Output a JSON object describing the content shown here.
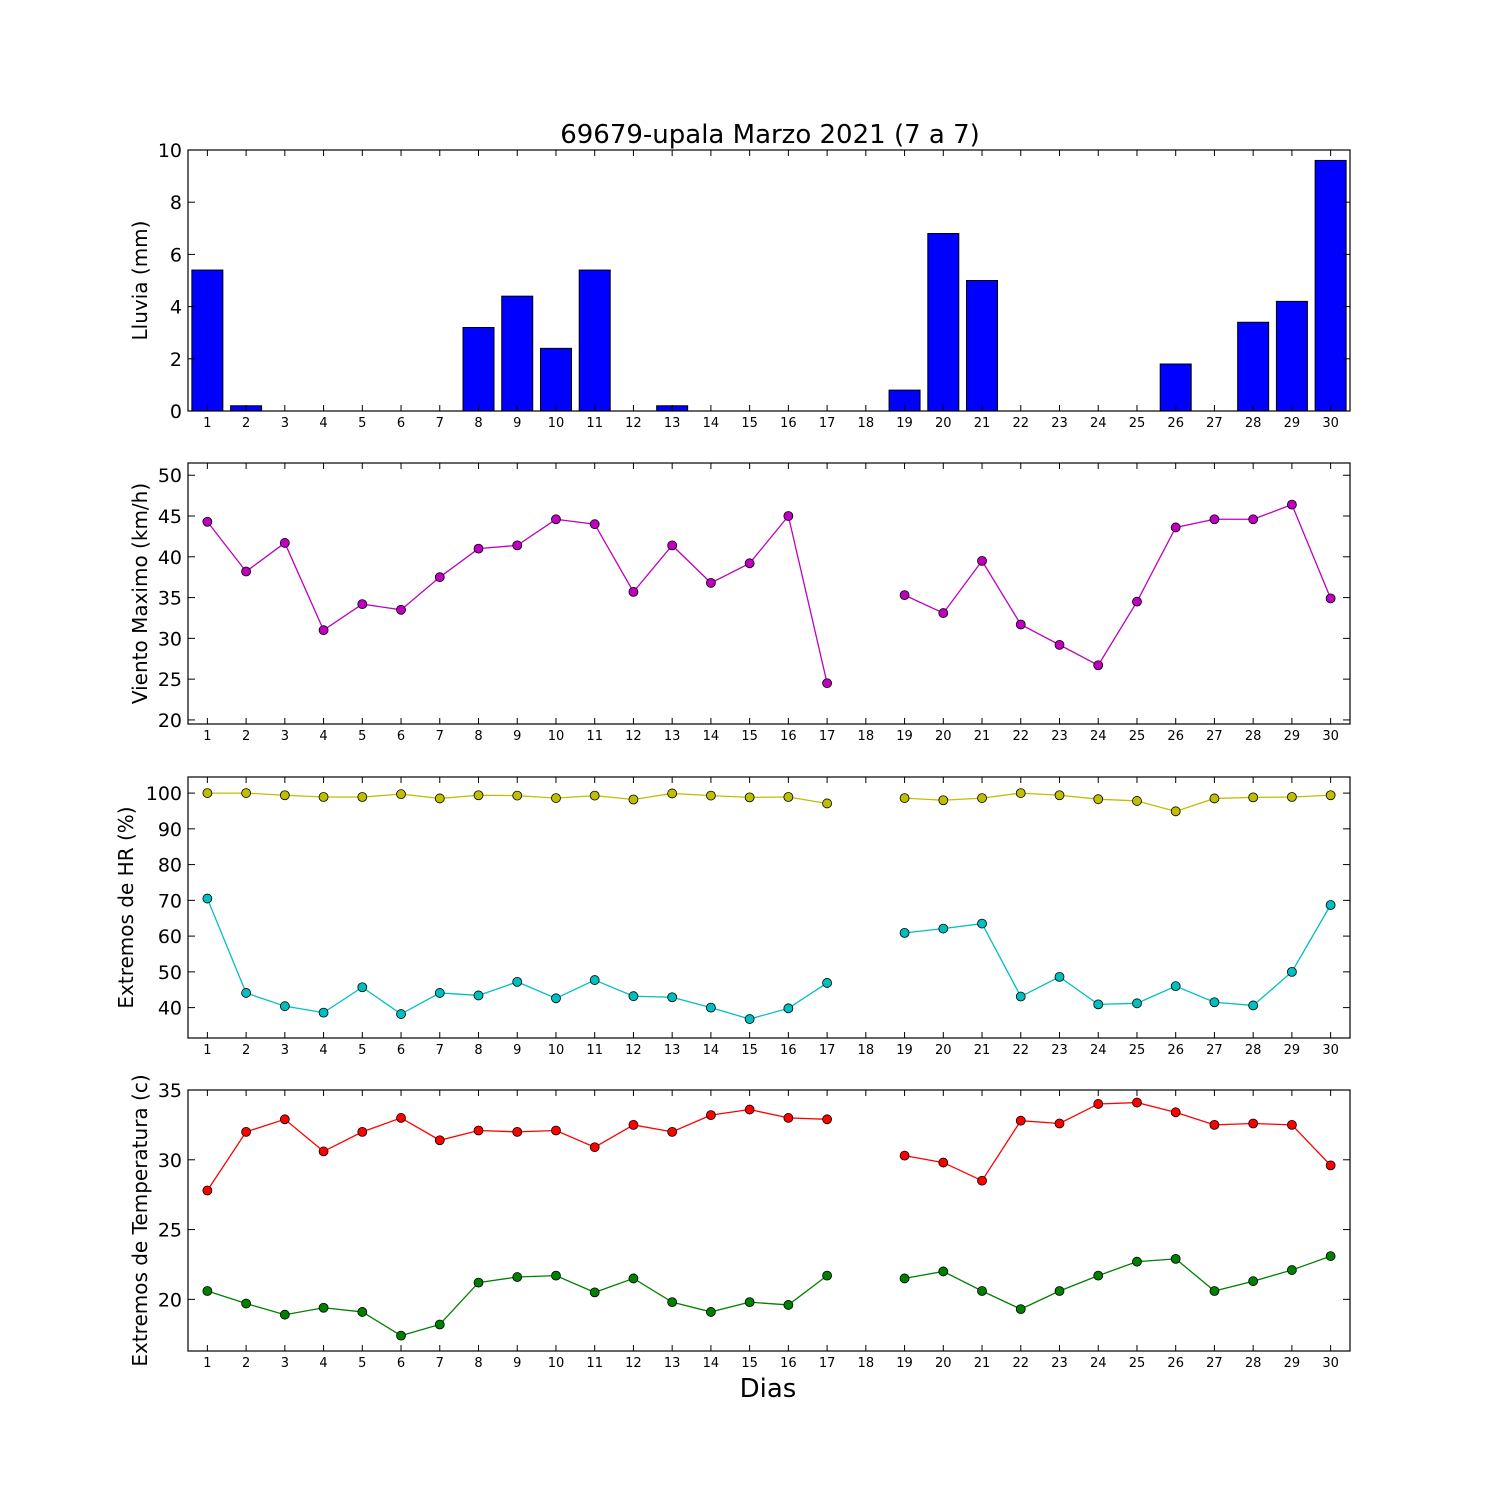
{
  "title": "69679-upala Marzo 2021  (7 a 7)",
  "xlabel": "Dias",
  "colors": {
    "lluvia": "#0000ff",
    "viento": "#bf00bf",
    "hr_max": "#bfbf00",
    "hr_min": "#00bfbf",
    "temp_max": "#ff0000",
    "temp_min": "#008000"
  },
  "chart_data": [
    {
      "type": "bar",
      "ylabel": "Lluvia (mm)",
      "ylim": [
        0,
        10
      ],
      "yticks": [
        0,
        2,
        4,
        6,
        8,
        10
      ],
      "categories": [
        "1",
        "2",
        "3",
        "4",
        "5",
        "6",
        "7",
        "8",
        "9",
        "10",
        "11",
        "12",
        "13",
        "14",
        "15",
        "16",
        "17",
        "18",
        "19",
        "20",
        "21",
        "22",
        "23",
        "24",
        "25",
        "26",
        "27",
        "28",
        "29",
        "30"
      ],
      "series": [
        {
          "values": [
            5.4,
            0.2,
            0,
            0,
            0,
            0,
            0,
            3.2,
            4.4,
            2.4,
            5.4,
            0,
            0.2,
            0,
            0,
            0,
            0,
            null,
            0.8,
            6.8,
            5.0,
            0,
            0,
            0,
            0,
            1.8,
            0,
            3.4,
            4.2,
            9.6
          ]
        }
      ]
    },
    {
      "type": "line",
      "ylabel": "Viento Maximo (km/h)",
      "ylim": [
        19.5,
        51.5
      ],
      "yticks": [
        20,
        25,
        30,
        35,
        40,
        45,
        50
      ],
      "categories": [
        "1",
        "2",
        "3",
        "4",
        "5",
        "6",
        "7",
        "8",
        "9",
        "10",
        "11",
        "12",
        "13",
        "14",
        "15",
        "16",
        "17",
        "18",
        "19",
        "20",
        "21",
        "22",
        "23",
        "24",
        "25",
        "26",
        "27",
        "28",
        "29",
        "30"
      ],
      "series": [
        {
          "values": [
            44.3,
            38.2,
            41.7,
            31.0,
            34.2,
            33.5,
            37.5,
            41.0,
            41.4,
            44.6,
            44.0,
            35.7,
            41.4,
            36.8,
            39.2,
            45.0,
            24.5,
            null,
            35.3,
            33.1,
            39.5,
            31.7,
            29.2,
            26.7,
            34.5,
            43.6,
            44.6,
            44.6,
            46.4,
            34.9
          ]
        }
      ]
    },
    {
      "type": "line",
      "ylabel": "Extremos de HR (%)",
      "ylim": [
        31.5,
        104.5
      ],
      "yticks": [
        40,
        50,
        60,
        70,
        80,
        90,
        100
      ],
      "categories": [
        "1",
        "2",
        "3",
        "4",
        "5",
        "6",
        "7",
        "8",
        "9",
        "10",
        "11",
        "12",
        "13",
        "14",
        "15",
        "16",
        "17",
        "18",
        "19",
        "20",
        "21",
        "22",
        "23",
        "24",
        "25",
        "26",
        "27",
        "28",
        "29",
        "30"
      ],
      "series": [
        {
          "values": [
            100,
            100,
            99.4,
            98.9,
            98.9,
            99.7,
            98.5,
            99.4,
            99.3,
            98.6,
            99.3,
            98.2,
            99.9,
            99.3,
            98.8,
            98.9,
            97.1,
            null,
            98.6,
            98.0,
            98.6,
            100,
            99.4,
            98.3,
            97.8,
            94.9,
            98.5,
            98.8,
            98.9,
            99.4
          ]
        },
        {
          "values": [
            70.5,
            44.1,
            40.4,
            38.6,
            45.7,
            38.2,
            44.1,
            43.4,
            47.2,
            42.6,
            47.7,
            43.2,
            42.9,
            40.0,
            36.8,
            39.8,
            46.9,
            null,
            60.9,
            62.1,
            63.5,
            43.1,
            48.6,
            40.9,
            41.2,
            46.0,
            41.5,
            40.6,
            50.0,
            68.7
          ]
        }
      ]
    },
    {
      "type": "line",
      "ylabel": "Extremos de Temperatura (c)",
      "ylim": [
        16.3,
        35
      ],
      "yticks": [
        20,
        25,
        30,
        35
      ],
      "categories": [
        "1",
        "2",
        "3",
        "4",
        "5",
        "6",
        "7",
        "8",
        "9",
        "10",
        "11",
        "12",
        "13",
        "14",
        "15",
        "16",
        "17",
        "18",
        "19",
        "20",
        "21",
        "22",
        "23",
        "24",
        "25",
        "26",
        "27",
        "28",
        "29",
        "30"
      ],
      "series": [
        {
          "values": [
            27.8,
            32.0,
            32.9,
            30.6,
            32.0,
            33.0,
            31.4,
            32.1,
            32.0,
            32.1,
            30.9,
            32.5,
            32.0,
            33.2,
            33.6,
            33.0,
            32.9,
            null,
            30.3,
            29.8,
            28.5,
            32.8,
            32.6,
            34.0,
            34.1,
            33.4,
            32.5,
            32.6,
            32.5,
            29.6
          ]
        },
        {
          "values": [
            20.6,
            19.7,
            18.9,
            19.4,
            19.1,
            17.4,
            18.2,
            21.2,
            21.6,
            21.7,
            20.5,
            21.5,
            19.8,
            19.1,
            19.8,
            19.6,
            21.7,
            null,
            21.5,
            22.0,
            20.6,
            19.3,
            20.6,
            21.7,
            22.7,
            22.9,
            20.6,
            21.3,
            22.1,
            23.1
          ]
        }
      ]
    }
  ]
}
